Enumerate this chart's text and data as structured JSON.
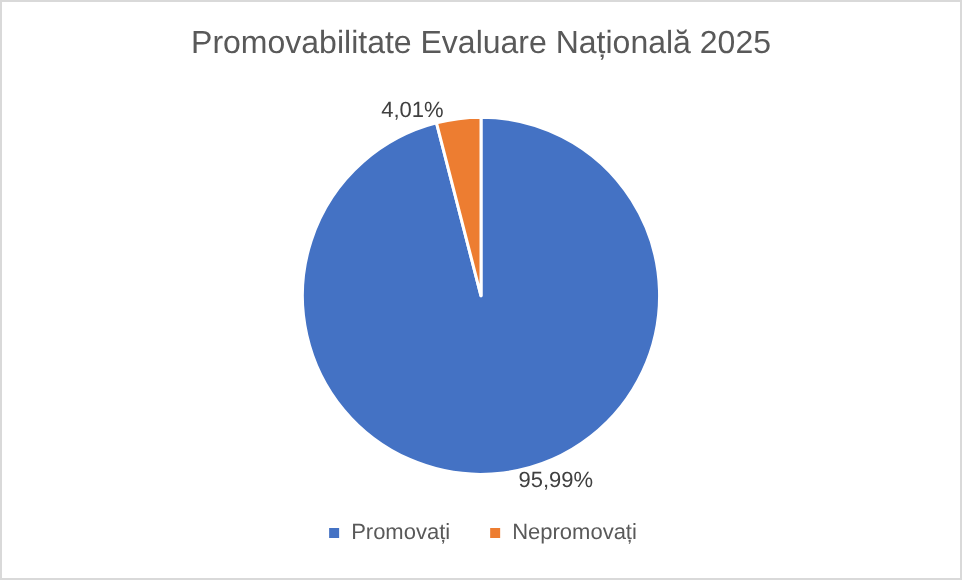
{
  "chart_data": {
    "type": "pie",
    "title": "Promovabilitate Evaluare Națională 2025",
    "categories": [
      "Promovați",
      "Nepromovați"
    ],
    "values": [
      95.99,
      4.01
    ],
    "colors": [
      "#4472c4",
      "#ed7d31"
    ],
    "value_labels": [
      "95,99%",
      "4,01%"
    ],
    "legend": "bottom"
  }
}
